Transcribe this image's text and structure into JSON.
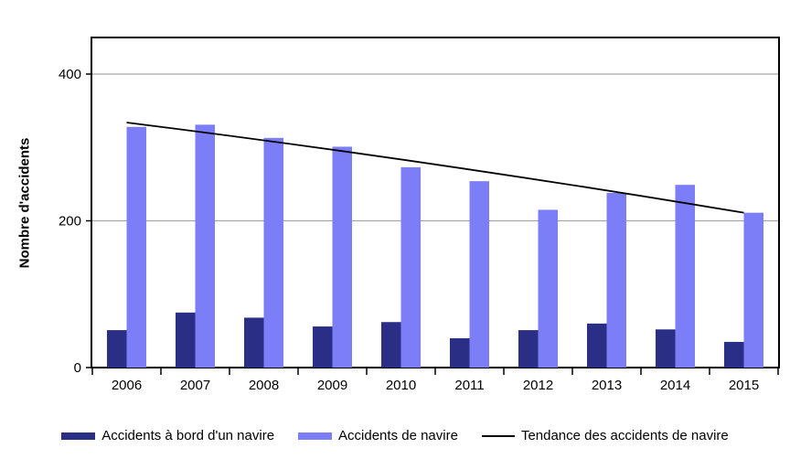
{
  "chart_data": {
    "type": "bar",
    "title": "",
    "categories": [
      "2006",
      "2007",
      "2008",
      "2009",
      "2010",
      "2011",
      "2012",
      "2013",
      "2014",
      "2015"
    ],
    "series": [
      {
        "name": "Accidents à bord d'un navire",
        "color": "#2b2e85",
        "values": [
          51,
          75,
          68,
          56,
          62,
          40,
          51,
          60,
          52,
          35
        ]
      },
      {
        "name": "Accidents de navire",
        "color": "#7c7ef8",
        "values": [
          328,
          331,
          313,
          301,
          273,
          254,
          215,
          238,
          249,
          211
        ]
      }
    ],
    "trend": {
      "name": "Tendance des accidents de navire",
      "color": "#000000",
      "start": 334,
      "end": 211
    },
    "xlabel": "",
    "ylabel": "Nombre d'accidents",
    "yticks": [
      0,
      200,
      400
    ],
    "ylim": [
      0,
      450
    ],
    "grid": true,
    "gridline_color": "#a6a6a6",
    "axis_color": "#000000",
    "legend_position": "bottom"
  }
}
